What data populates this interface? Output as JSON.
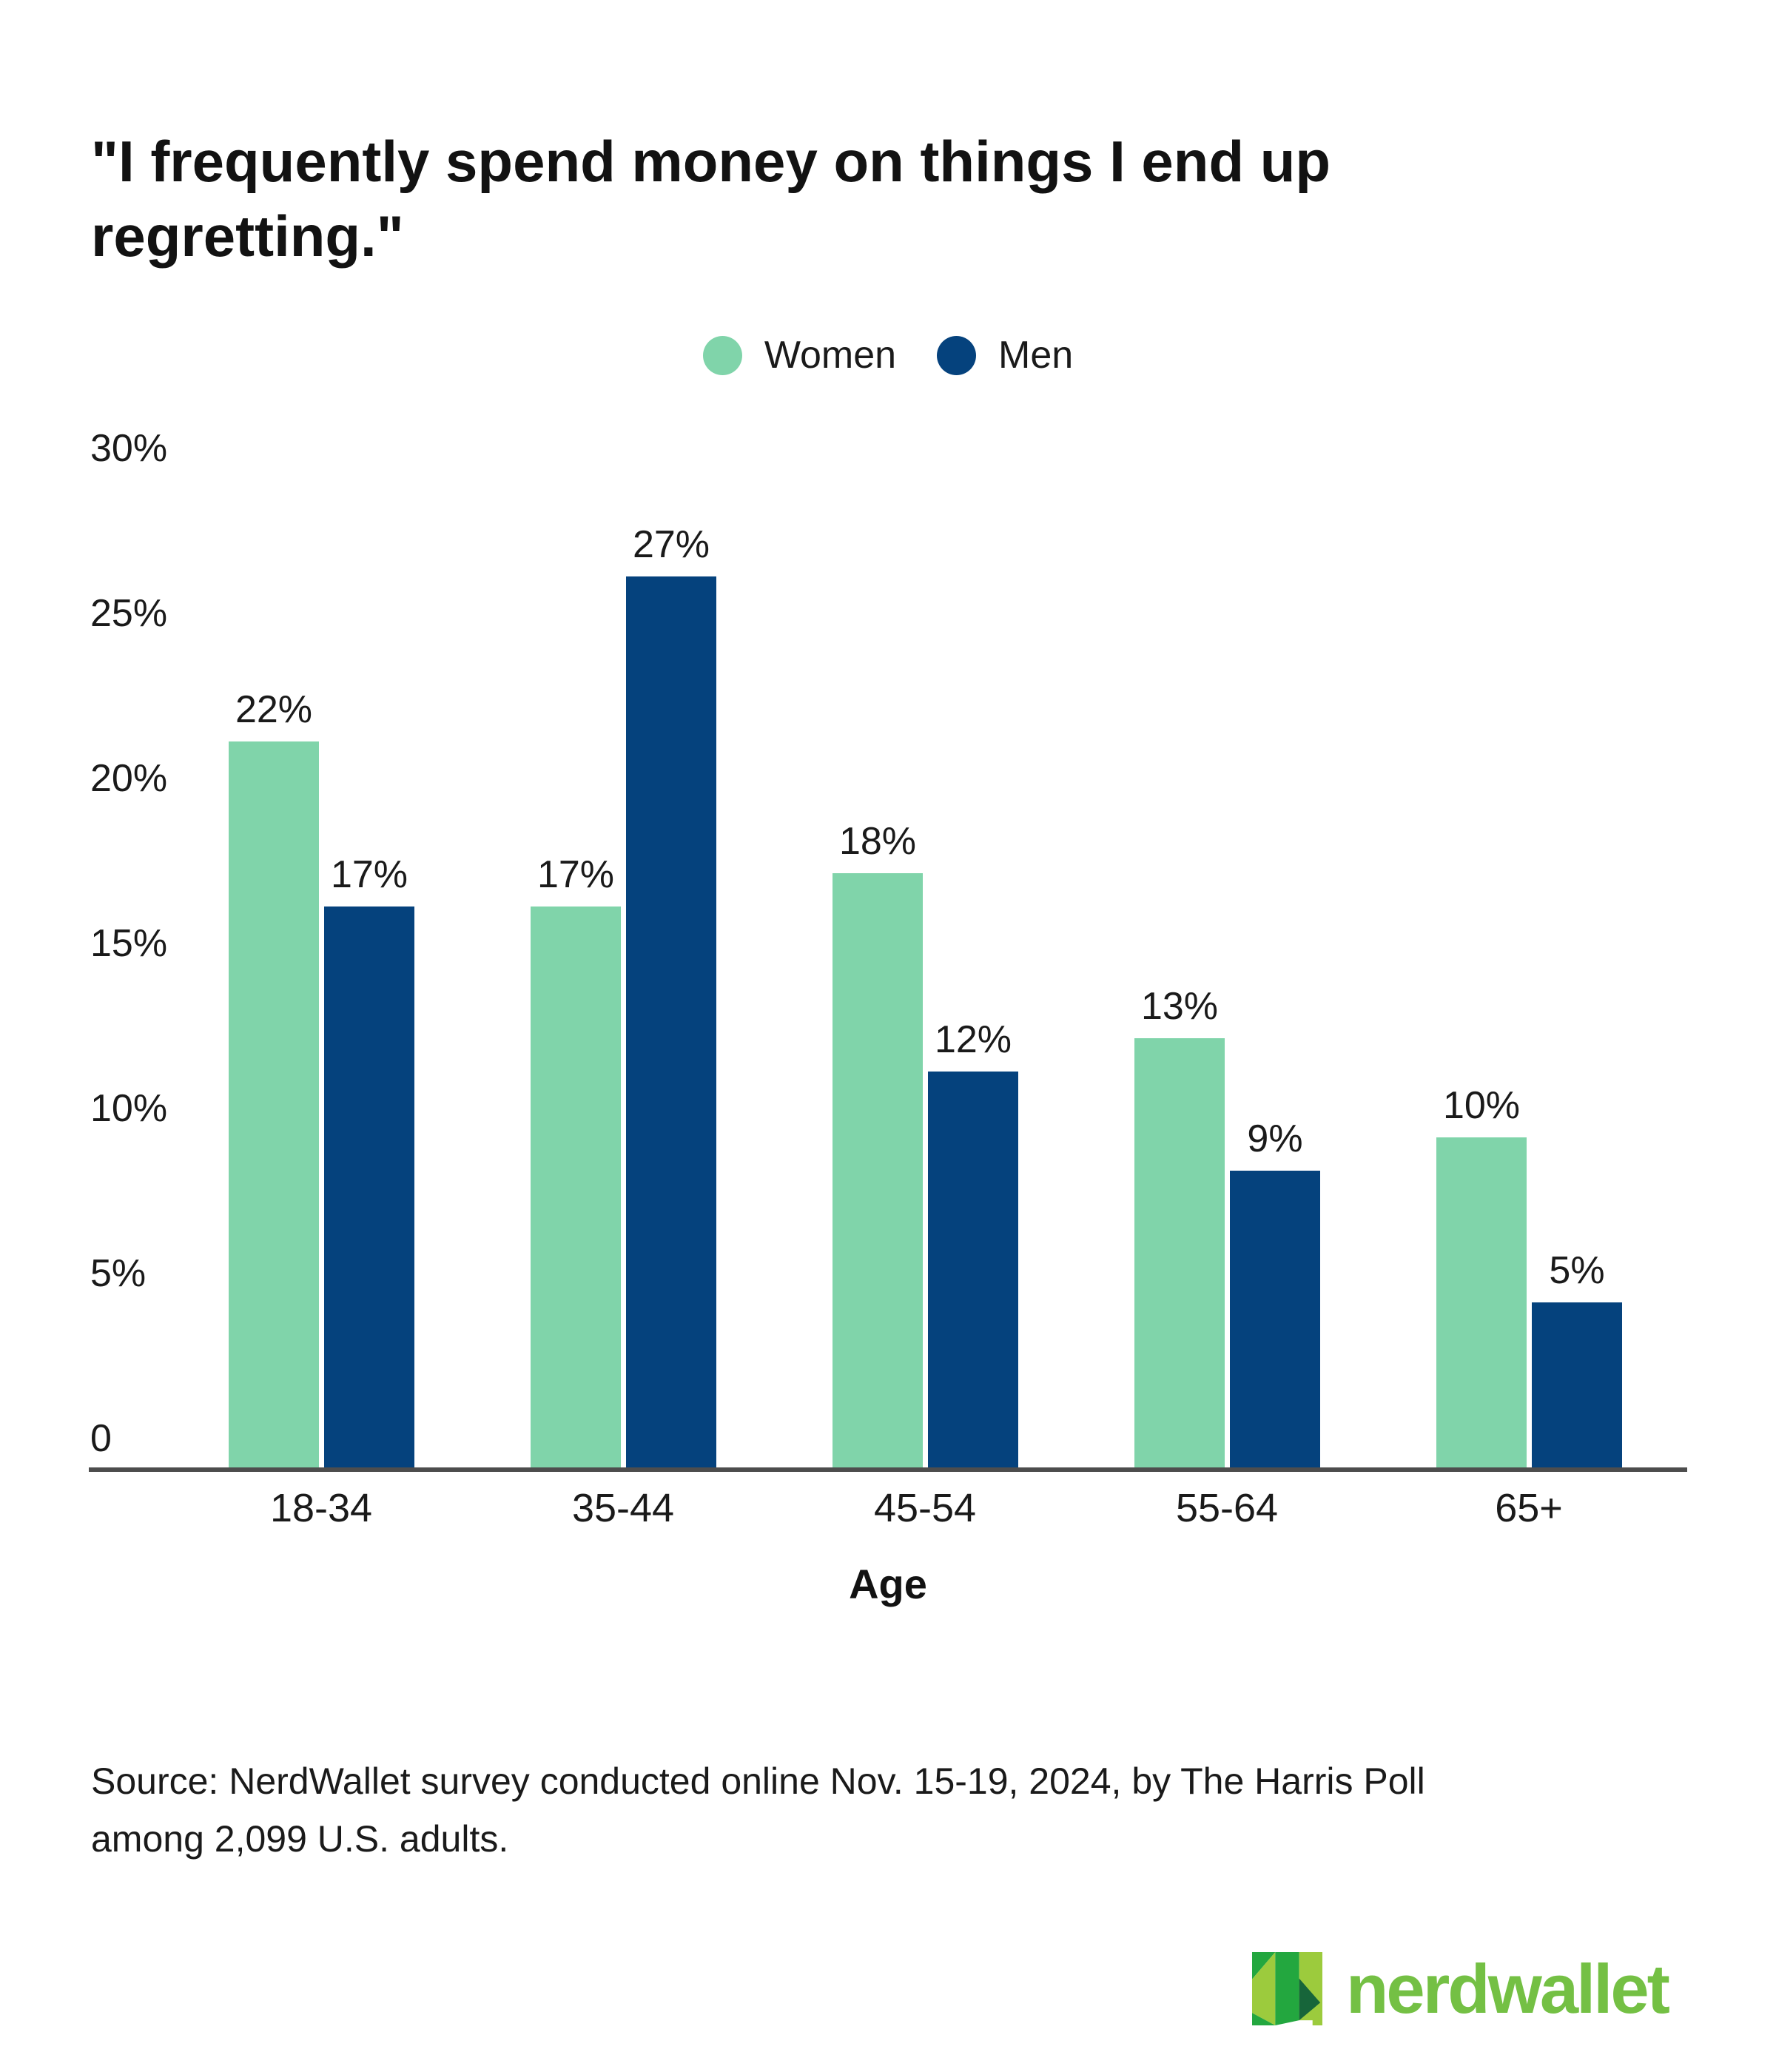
{
  "title": {
    "line1": "\"I frequently spend money on things I end up",
    "line2": "regretting.\"",
    "text": "\"I frequently spend money on things I end up regretting.\""
  },
  "chart_data": {
    "type": "bar",
    "title": "\"I frequently spend money on things I end up regretting.\"",
    "categories": [
      "18-34",
      "35-44",
      "45-54",
      "55-64",
      "65+"
    ],
    "series": [
      {
        "name": "Women",
        "color": "#80d4aa",
        "values": [
          22,
          17,
          18,
          13,
          10
        ]
      },
      {
        "name": "Men",
        "color": "#05427d",
        "values": [
          17,
          27,
          12,
          9,
          5
        ]
      }
    ],
    "value_suffix": "%",
    "xlabel": "Age",
    "ylabel": "",
    "ylim": [
      0,
      30
    ],
    "yticks": [
      30,
      25,
      20,
      15,
      10,
      5,
      0
    ],
    "ytick_labels": [
      "30%",
      "25%",
      "20%",
      "15%",
      "10%",
      "5%",
      "0"
    ],
    "grid": false,
    "legend_position": "top-center",
    "axis_color": "#4d4d4d"
  },
  "source": {
    "line1": "Source: NerdWallet survey conducted online Nov. 15-19, 2024, by The Harris Poll",
    "line2": "among 2,099 U.S. adults."
  },
  "logo": {
    "text": "nerdwallet",
    "text_color": "#74c044",
    "mark_colors": {
      "light": "#9ccb3d",
      "medium": "#23a73f",
      "dark": "#17653a"
    }
  }
}
